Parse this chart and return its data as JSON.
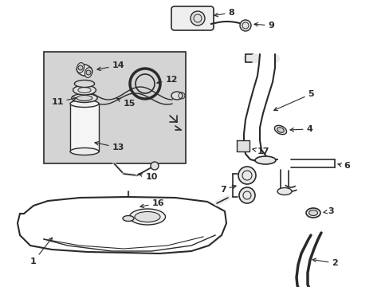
{
  "bg_color": "#ffffff",
  "line_color": "#2a2a2a",
  "box_bg": "#d4d4d4",
  "fig_w": 4.89,
  "fig_h": 3.6,
  "dpi": 100
}
